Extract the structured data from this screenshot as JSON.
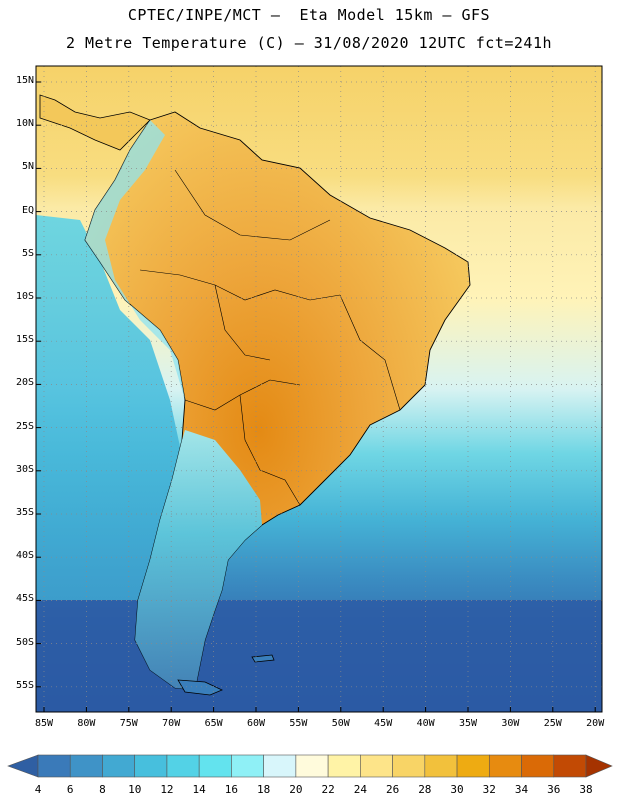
{
  "header": {
    "line1": "CPTEC/INPE/MCT –  Eta Model 15km – GFS",
    "line2": "2 Metre Temperature (C) – 31/08/2020 12UTC fct=241h"
  },
  "latitude_labels": [
    "15N",
    "10N",
    "5N",
    "EQ",
    "5S",
    "10S",
    "15S",
    "20S",
    "25S",
    "30S",
    "35S",
    "40S",
    "45S",
    "50S",
    "55S"
  ],
  "longitude_labels": [
    "85W",
    "80W",
    "75W",
    "70W",
    "65W",
    "60W",
    "55W",
    "50W",
    "45W",
    "40W",
    "35W",
    "30W",
    "25W",
    "20W"
  ],
  "colorbar": {
    "labels": [
      "4",
      "6",
      "8",
      "10",
      "12",
      "14",
      "16",
      "18",
      "20",
      "22",
      "24",
      "26",
      "28",
      "30",
      "32",
      "34",
      "36",
      "38"
    ],
    "colors": [
      "#2f5fa3",
      "#3a7ab9",
      "#3f93c7",
      "#42a9d2",
      "#47bfdd",
      "#53d2e6",
      "#63e3ee",
      "#8ff0f6",
      "#d8f6fb",
      "#fffbdc",
      "#fff3a6",
      "#fde489",
      "#f8d466",
      "#f2c13c",
      "#eeab12",
      "#e78b10",
      "#da6a06",
      "#c24a04",
      "#a53300"
    ]
  },
  "colors": {
    "ocean_north": "#f6d96a",
    "ocean_south": "#2b5ea8",
    "land_hot": "#eda73a",
    "coast": "#000000"
  }
}
